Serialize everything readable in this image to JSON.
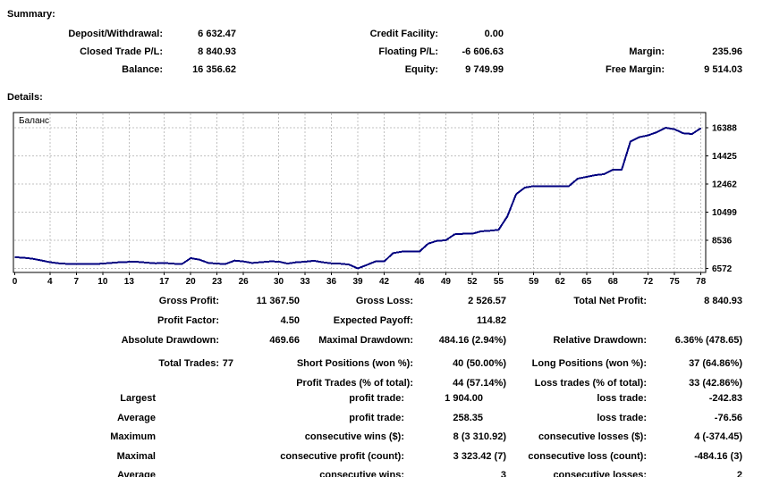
{
  "page": {
    "summary_title": "Summary:",
    "details_title": "Details:"
  },
  "summary": {
    "rows": [
      {
        "l1": "Deposit/Withdrawal:",
        "v1": "6 632.47",
        "l2": "Credit Facility:",
        "v2": "0.00",
        "l3": "",
        "v3": ""
      },
      {
        "l1": "Closed Trade P/L:",
        "v1": "8 840.93",
        "l2": "Floating P/L:",
        "v2": "-6 606.63",
        "l3": "Margin:",
        "v3": "235.96"
      },
      {
        "l1": "Balance:",
        "v1": "16 356.62",
        "l2": "Equity:",
        "v2": "9 749.99",
        "l3": "Free Margin:",
        "v3": "9 514.03"
      }
    ]
  },
  "stats": {
    "block1": [
      {
        "l1": "Gross Profit:",
        "v1": "11 367.50",
        "l2": "Gross Loss:",
        "v2": "2 526.57",
        "l3": "Total Net Profit:",
        "v3": "8 840.93"
      },
      {
        "l1": "Profit Factor:",
        "v1": "4.50",
        "l2": "Expected Payoff:",
        "v2": "114.82",
        "l3": "",
        "v3": ""
      },
      {
        "l1": "Absolute Drawdown:",
        "v1": "469.66",
        "l2": "Maximal Drawdown:",
        "v2": "484.16 (2.94%)",
        "l3": "Relative Drawdown:",
        "v3": "6.36% (478.65)"
      }
    ],
    "block2": [
      {
        "l1": "Total Trades:",
        "v1": "77",
        "l2": "Short Positions (won %):",
        "v2": "40 (50.00%)",
        "l3": "Long Positions (won %):",
        "v3": "37 (64.86%)"
      },
      {
        "l1": "",
        "v1": "",
        "l2": "Profit Trades (% of total):",
        "v2": "44 (57.14%)",
        "l3": "Loss trades (% of total):",
        "v3": "33 (42.86%)"
      }
    ],
    "block3": [
      {
        "l1": "Largest",
        "v1": "",
        "l2": "profit trade:",
        "v2": "1 904.00",
        "l3": "loss trade:",
        "v3": "-242.83"
      },
      {
        "l1": "Average",
        "v1": "",
        "l2": "profit trade:",
        "v2": "258.35",
        "l3": "loss trade:",
        "v3": "-76.56"
      },
      {
        "l1": "Maximum",
        "v1": "",
        "l2": "consecutive wins ($):",
        "v2": "8 (3 310.92)",
        "l3": "consecutive losses ($):",
        "v3": "4 (-374.45)"
      },
      {
        "l1": "Maximal",
        "v1": "",
        "l2": "consecutive profit (count):",
        "v2": "3 323.42 (7)",
        "l3": "consecutive loss (count):",
        "v3": "-484.16 (3)"
      },
      {
        "l1": "Average",
        "v1": "",
        "l2": "consecutive wins:",
        "v2": "3",
        "l3": "consecutive losses:",
        "v3": "2"
      }
    ]
  },
  "chart_data": {
    "type": "line",
    "title": "Баланс",
    "legend": [
      "Баланс"
    ],
    "xlabel": "",
    "ylabel": "",
    "x_start": 0,
    "x_step": 1,
    "xlim": [
      0,
      78
    ],
    "ylim": [
      6572,
      16388
    ],
    "x_ticks": [
      0,
      4,
      7,
      10,
      13,
      17,
      20,
      23,
      26,
      30,
      33,
      36,
      39,
      42,
      46,
      49,
      52,
      55,
      59,
      62,
      65,
      68,
      72,
      75,
      78
    ],
    "y_ticks": [
      6572,
      8536,
      10499,
      12462,
      14425,
      16388
    ],
    "grid": true,
    "line_color": "#000080",
    "values": [
      7350,
      7320,
      7250,
      7130,
      7010,
      6930,
      6890,
      6870,
      6870,
      6880,
      6910,
      6960,
      7010,
      7030,
      7030,
      6980,
      6930,
      6950,
      6900,
      6880,
      7290,
      7180,
      6960,
      6900,
      6890,
      7120,
      7060,
      6950,
      7010,
      7060,
      7050,
      6910,
      7000,
      7040,
      7110,
      7000,
      6930,
      6900,
      6840,
      6572,
      6810,
      7060,
      7060,
      7640,
      7744,
      7744,
      7744,
      8300,
      8500,
      8535,
      8953,
      8990,
      8990,
      9158,
      9200,
      9264,
      10200,
      11758,
      12213,
      12320,
      12320,
      12320,
      12320,
      12320,
      12836,
      12961,
      13085,
      13150,
      13459,
      13459,
      15434,
      15733,
      15858,
      16076,
      16388,
      16280,
      16000,
      15950,
      16356.62
    ]
  }
}
